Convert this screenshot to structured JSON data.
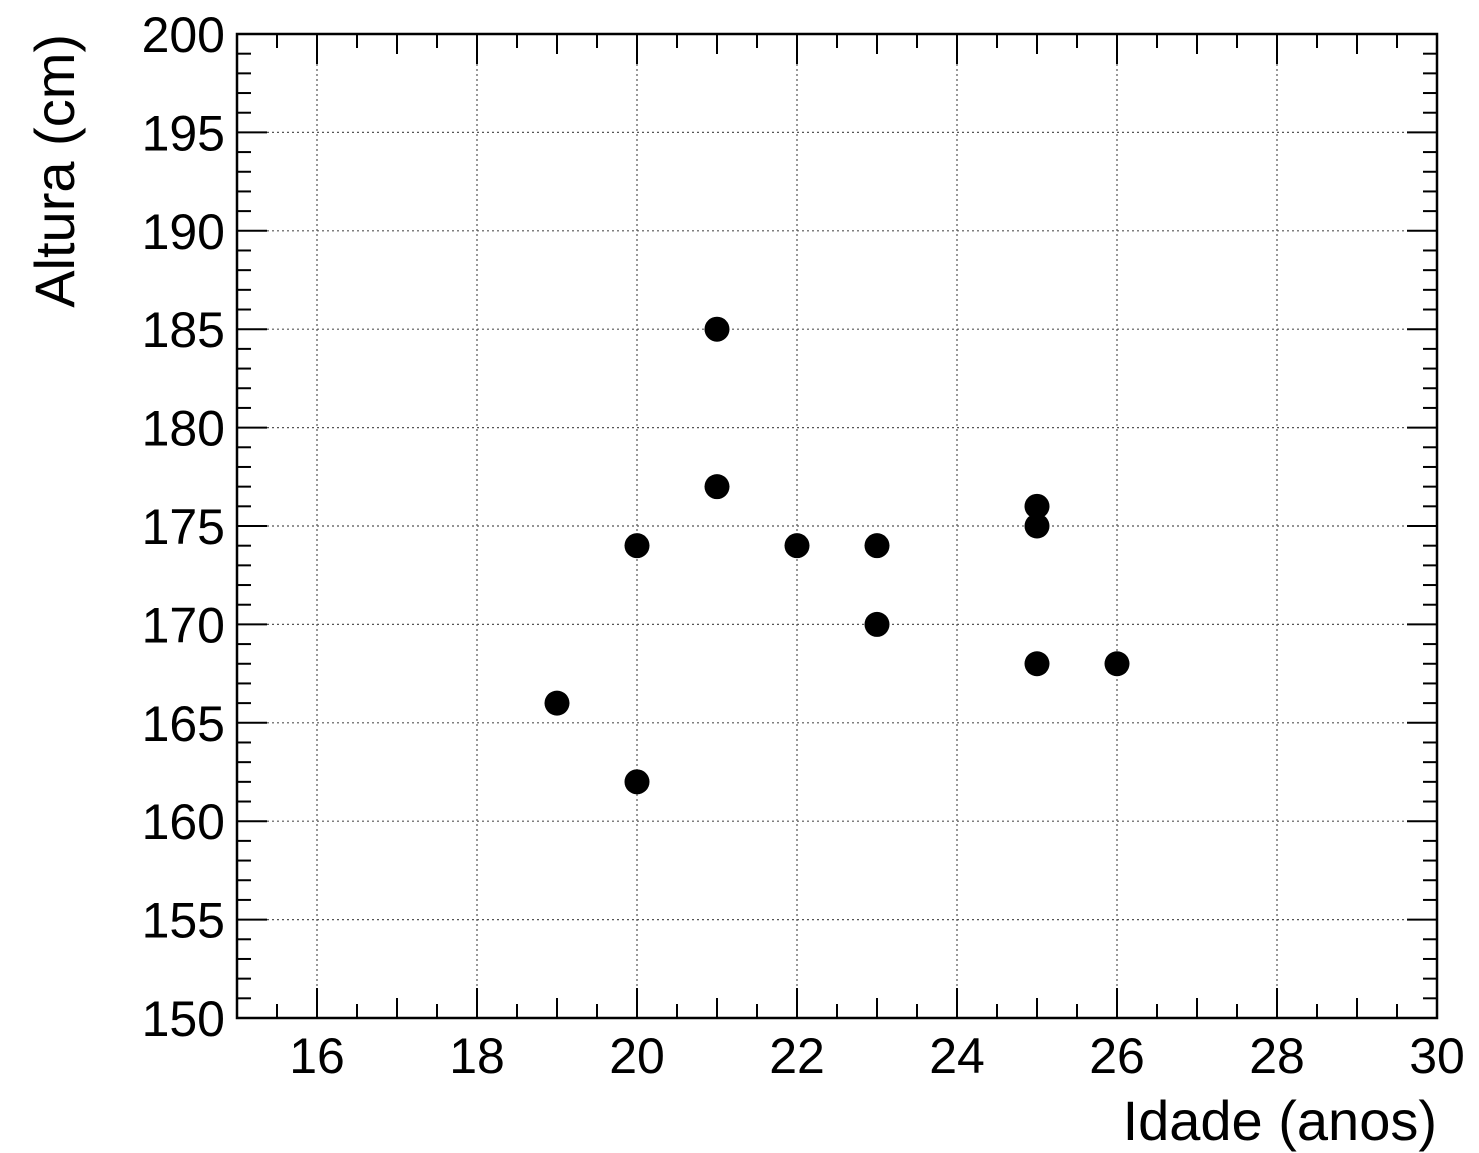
{
  "chart_data": {
    "type": "scatter",
    "xlabel": "Idade (anos)",
    "ylabel": "Altura (cm)",
    "xlim": [
      15,
      30
    ],
    "ylim": [
      150,
      200
    ],
    "x_major_ticks": [
      16,
      18,
      20,
      22,
      24,
      26,
      28,
      30
    ],
    "y_major_ticks": [
      150,
      155,
      160,
      165,
      170,
      175,
      180,
      185,
      190,
      195,
      200
    ],
    "x_tick_labels": [
      "16",
      "18",
      "20",
      "22",
      "24",
      "26",
      "28",
      "30"
    ],
    "y_tick_labels": [
      "150",
      "155",
      "160",
      "165",
      "170",
      "175",
      "180",
      "185",
      "190",
      "195",
      "200"
    ],
    "grid": true,
    "legend": "none",
    "marker_color": "#000000",
    "points": [
      {
        "x": 19,
        "y": 166
      },
      {
        "x": 20,
        "y": 162
      },
      {
        "x": 20,
        "y": 174
      },
      {
        "x": 21,
        "y": 185
      },
      {
        "x": 21,
        "y": 177
      },
      {
        "x": 22,
        "y": 174
      },
      {
        "x": 23,
        "y": 174
      },
      {
        "x": 23,
        "y": 170
      },
      {
        "x": 25,
        "y": 176
      },
      {
        "x": 25,
        "y": 175
      },
      {
        "x": 25,
        "y": 168
      },
      {
        "x": 26,
        "y": 168
      }
    ]
  }
}
